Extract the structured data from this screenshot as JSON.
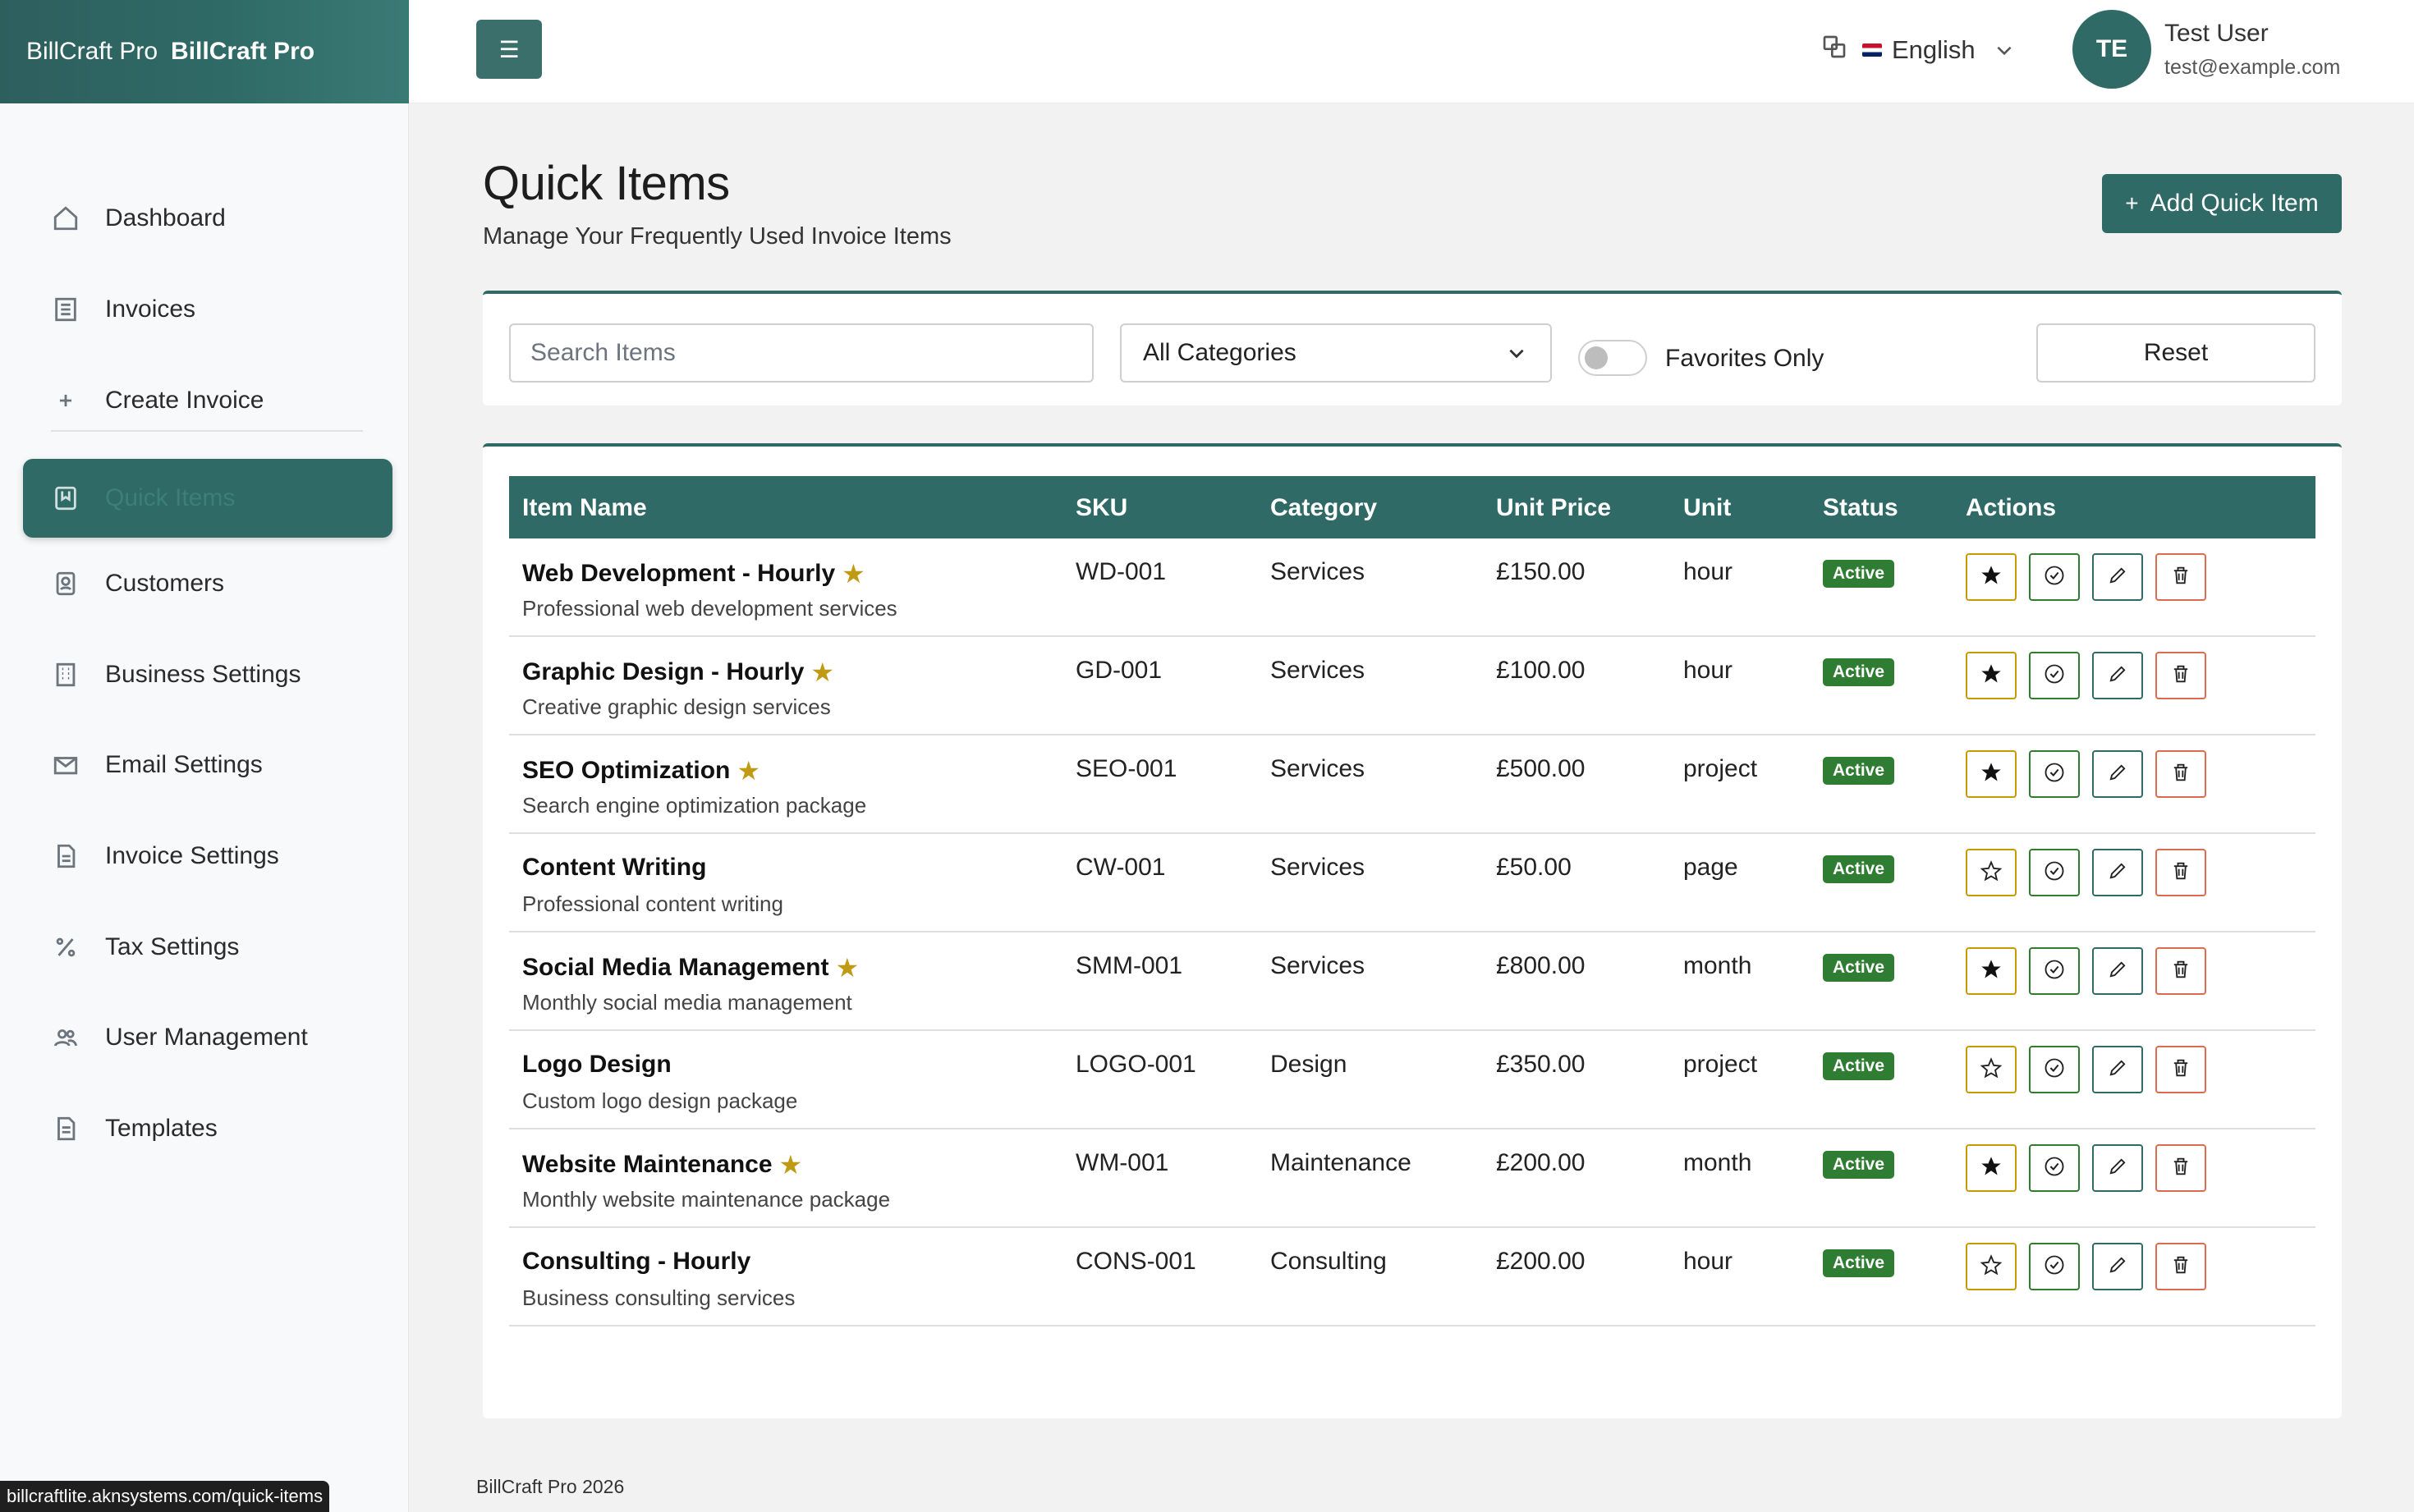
{
  "brand": {
    "name_light": "BillCraft Pro",
    "name_bold": "BillCraft Pro"
  },
  "sidebar": {
    "items": [
      {
        "label": "Dashboard",
        "icon": "home-icon"
      },
      {
        "label": "Invoices",
        "icon": "invoice-icon"
      },
      {
        "label": "Create Invoice",
        "icon": "plus-icon"
      },
      {
        "label": "Quick Items",
        "icon": "bookmark-icon",
        "active": true
      },
      {
        "label": "Customers",
        "icon": "person-badge-icon"
      },
      {
        "label": "Business Settings",
        "icon": "building-icon"
      },
      {
        "label": "Email Settings",
        "icon": "envelope-icon"
      },
      {
        "label": "Invoice Settings",
        "icon": "file-text-icon"
      },
      {
        "label": "Tax Settings",
        "icon": "percent-icon"
      },
      {
        "label": "User Management",
        "icon": "people-icon"
      },
      {
        "label": "Templates",
        "icon": "file-icon"
      }
    ]
  },
  "header": {
    "language": "English",
    "avatar_initials": "TE",
    "user_name": "Test User",
    "user_email": "test@example.com"
  },
  "page": {
    "title": "Quick Items",
    "subtitle": "Manage Your Frequently Used Invoice Items",
    "add_button": "Add Quick Item"
  },
  "filters": {
    "search_placeholder": "Search Items",
    "category_selected": "All Categories",
    "favorites_label": "Favorites Only",
    "favorites_on": false,
    "reset_label": "Reset"
  },
  "table": {
    "columns": [
      "Item Name",
      "SKU",
      "Category",
      "Unit Price",
      "Unit",
      "Status",
      "Actions"
    ],
    "rows": [
      {
        "name": "Web Development - Hourly",
        "desc": "Professional web development services",
        "sku": "WD-001",
        "category": "Services",
        "price": "£150.00",
        "unit": "hour",
        "status": "Active",
        "favorite": true
      },
      {
        "name": "Graphic Design - Hourly",
        "desc": "Creative graphic design services",
        "sku": "GD-001",
        "category": "Services",
        "price": "£100.00",
        "unit": "hour",
        "status": "Active",
        "favorite": true
      },
      {
        "name": "SEO Optimization",
        "desc": "Search engine optimization package",
        "sku": "SEO-001",
        "category": "Services",
        "price": "£500.00",
        "unit": "project",
        "status": "Active",
        "favorite": true
      },
      {
        "name": "Content Writing",
        "desc": "Professional content writing",
        "sku": "CW-001",
        "category": "Services",
        "price": "£50.00",
        "unit": "page",
        "status": "Active",
        "favorite": false
      },
      {
        "name": "Social Media Management",
        "desc": "Monthly social media management",
        "sku": "SMM-001",
        "category": "Services",
        "price": "£800.00",
        "unit": "month",
        "status": "Active",
        "favorite": true
      },
      {
        "name": "Logo Design",
        "desc": "Custom logo design package",
        "sku": "LOGO-001",
        "category": "Design",
        "price": "£350.00",
        "unit": "project",
        "status": "Active",
        "favorite": false
      },
      {
        "name": "Website Maintenance",
        "desc": "Monthly website maintenance package",
        "sku": "WM-001",
        "category": "Maintenance",
        "price": "£200.00",
        "unit": "month",
        "status": "Active",
        "favorite": true
      },
      {
        "name": "Consulting - Hourly",
        "desc": "Business consulting services",
        "sku": "CONS-001",
        "category": "Consulting",
        "price": "£200.00",
        "unit": "hour",
        "status": "Active",
        "favorite": false
      }
    ]
  },
  "footer": {
    "text": "BillCraft Pro 2026"
  },
  "status_url": "billcraftlite.aknsystems.com/quick-items",
  "colors": {
    "primary": "#2f6a66",
    "success": "#2e7d32",
    "favorite": "#c09a12",
    "danger": "#e06a4f"
  }
}
